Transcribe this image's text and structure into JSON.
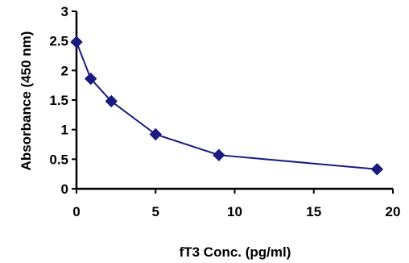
{
  "chart_data": {
    "type": "line",
    "title": "",
    "xlabel": "fT3 Conc. (pg/ml)",
    "ylabel": "Absorbance (450 nm)",
    "xlim": [
      0,
      20
    ],
    "ylim": [
      0,
      3
    ],
    "xticks": [
      0,
      5,
      10,
      15,
      20
    ],
    "yticks": [
      0,
      0.5,
      1,
      1.5,
      2,
      2.5,
      3
    ],
    "xtick_labels": [
      "0",
      "5",
      "10",
      "15",
      "20"
    ],
    "ytick_labels": [
      "0",
      "0.5",
      "1",
      "1.5",
      "2",
      "2.5",
      "3"
    ],
    "grid": false,
    "legend": "none",
    "series": [
      {
        "color": "#1a1a80",
        "marker": "diamond",
        "x": [
          0,
          0.9,
          2.2,
          5,
          9,
          19
        ],
        "y": [
          2.48,
          1.86,
          1.48,
          0.92,
          0.57,
          0.33
        ]
      }
    ]
  }
}
